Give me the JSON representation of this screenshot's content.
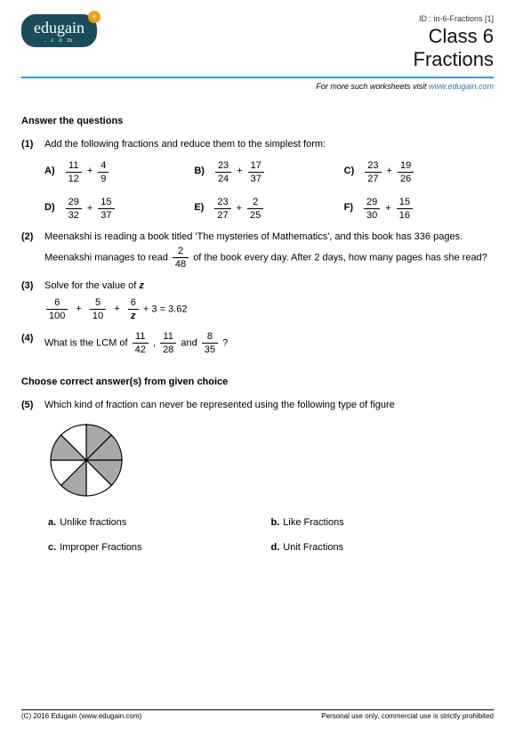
{
  "header": {
    "logo_text": "edugain",
    "logo_sub": ".   c   o   m",
    "id_line": "ID : in-6-Fractions [1]",
    "title1": "Class 6",
    "title2": "Fractions",
    "visit_prefix": "For more such worksheets visit ",
    "visit_link": "www.edugain.com"
  },
  "sections": {
    "answer": "Answer the questions",
    "choose": "Choose correct answer(s) from given choice"
  },
  "q1": {
    "num": "(1)",
    "text": "Add the following fractions and reduce them to the simplest form:",
    "items": [
      {
        "lab": "A)",
        "n1": "11",
        "d1": "12",
        "n2": "4",
        "d2": "9"
      },
      {
        "lab": "B)",
        "n1": "23",
        "d1": "24",
        "n2": "17",
        "d2": "37"
      },
      {
        "lab": "C)",
        "n1": "23",
        "d1": "27",
        "n2": "19",
        "d2": "26"
      },
      {
        "lab": "D)",
        "n1": "29",
        "d1": "32",
        "n2": "15",
        "d2": "37"
      },
      {
        "lab": "E)",
        "n1": "23",
        "d1": "27",
        "n2": "2",
        "d2": "25"
      },
      {
        "lab": "F)",
        "n1": "29",
        "d1": "30",
        "n2": "15",
        "d2": "16"
      }
    ]
  },
  "q2": {
    "num": "(2)",
    "pre": "Meenakshi is reading a book titled 'The mysteries of Mathematics', and this book has 336 pages. Meenakshi manages to read ",
    "fn": "2",
    "fd": "48",
    "post": " of the book every day. After 2 days, how many pages has she read?"
  },
  "q3": {
    "num": "(3)",
    "text": "Solve for the value of ",
    "var": "z",
    "t1n": "6",
    "t1d": "100",
    "t2n": "5",
    "t2d": "10",
    "t3n": "6",
    "t3d": "z",
    "tail": " + 3 = 3.62"
  },
  "q4": {
    "num": "(4)",
    "pre": "What is the LCM of ",
    "f1n": "11",
    "f1d": "42",
    "sep1": " , ",
    "f2n": "11",
    "f2d": "28",
    "sep2": " and ",
    "f3n": "8",
    "f3d": "35",
    "post": " ?"
  },
  "q5": {
    "num": "(5)",
    "text": "Which kind of fraction can never be represented using the following type of figure",
    "choices": {
      "a": "Unlike fractions",
      "b": "Like Fractions",
      "c": "Improper Fractions",
      "d": "Unit Fractions"
    },
    "pie": {
      "fill": "#a9a9a9",
      "stroke": "#000",
      "slices": 8,
      "shaded": [
        0,
        1,
        2,
        4,
        6
      ]
    }
  },
  "footer": {
    "left": "(C) 2016 Edugain (www.edugain.com)",
    "right": "Personal use only, commercial use is strictly prohibited"
  },
  "colors": {
    "rule": "#2aa0c8",
    "link": "#2a7ab0",
    "logo_bg": "#1a4d5c",
    "badge": "#f39c12"
  }
}
